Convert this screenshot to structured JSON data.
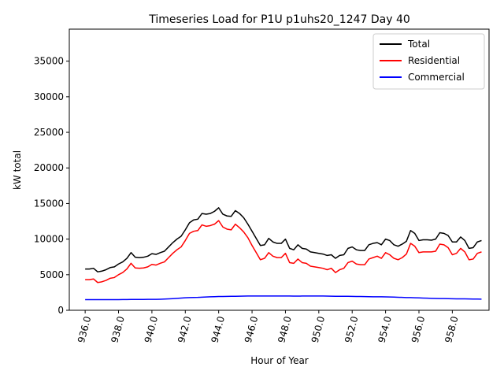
{
  "chart_data": {
    "type": "line",
    "title": "Timeseries Load for P1U p1uhs20_1247  Day 40",
    "xlabel": "Hour of Year",
    "ylabel": "kW total",
    "xlim": [
      935.05,
      960.2
    ],
    "ylim": [
      0,
      39500
    ],
    "x_ticks": [
      "936.0",
      "938.0",
      "940.0",
      "942.0",
      "944.0",
      "946.0",
      "948.0",
      "950.0",
      "952.0",
      "954.0",
      "956.0",
      "958.0"
    ],
    "x_tick_values": [
      936,
      938,
      940,
      942,
      944,
      946,
      948,
      950,
      952,
      954,
      956,
      958
    ],
    "y_ticks": [
      "0",
      "5000",
      "10000",
      "15000",
      "20000",
      "25000",
      "30000",
      "35000"
    ],
    "y_tick_values": [
      0,
      5000,
      10000,
      15000,
      20000,
      25000,
      30000,
      35000
    ],
    "legend_position": "top-right",
    "x_start": 936.0,
    "x_step": 0.25,
    "series": [
      {
        "name": "Total",
        "color": "#000000",
        "values": [
          5800,
          5800,
          5900,
          5400,
          5500,
          5700,
          6000,
          6100,
          6500,
          6800,
          7300,
          8100,
          7450,
          7400,
          7450,
          7600,
          7950,
          7850,
          8100,
          8300,
          8900,
          9500,
          10000,
          10400,
          11300,
          12300,
          12700,
          12800,
          13600,
          13500,
          13600,
          13900,
          14400,
          13500,
          13250,
          13200,
          14000,
          13600,
          13000,
          12100,
          11100,
          10100,
          9100,
          9200,
          10100,
          9600,
          9400,
          9400,
          10000,
          8700,
          8500,
          9200,
          8700,
          8600,
          8200,
          8100,
          8000,
          7900,
          7700,
          7800,
          7300,
          7700,
          7800,
          8700,
          8900,
          8500,
          8400,
          8400,
          9200,
          9400,
          9500,
          9200,
          10000,
          9800,
          9200,
          9000,
          9300,
          9700,
          11200,
          10800,
          9800,
          9900,
          9900,
          9850,
          10000,
          10900,
          10800,
          10500,
          9600,
          9600,
          10300,
          9800,
          8700,
          8800,
          9600,
          9800
        ]
      },
      {
        "name": "Residential",
        "color": "#ff0000",
        "values": [
          4300,
          4300,
          4400,
          3900,
          4000,
          4200,
          4500,
          4600,
          5000,
          5300,
          5800,
          6600,
          5950,
          5900,
          5950,
          6100,
          6450,
          6350,
          6600,
          6800,
          7400,
          8000,
          8500,
          8900,
          9800,
          10800,
          11100,
          11200,
          12000,
          11800,
          11900,
          12100,
          12600,
          11700,
          11400,
          11300,
          12100,
          11600,
          11000,
          10200,
          9100,
          8100,
          7100,
          7300,
          8100,
          7600,
          7400,
          7400,
          8000,
          6700,
          6600,
          7200,
          6700,
          6600,
          6200,
          6100,
          6000,
          5900,
          5700,
          5900,
          5300,
          5700,
          5900,
          6700,
          6900,
          6500,
          6400,
          6400,
          7200,
          7400,
          7600,
          7300,
          8100,
          7800,
          7300,
          7100,
          7400,
          7900,
          9400,
          9000,
          8100,
          8200,
          8200,
          8200,
          8300,
          9300,
          9200,
          8800,
          7800,
          8000,
          8700,
          8200,
          7100,
          7200,
          8000,
          8200
        ]
      },
      {
        "name": "Commercial",
        "color": "#0000ff",
        "values": [
          1500,
          1500,
          1500,
          1500,
          1500,
          1500,
          1500,
          1500,
          1500,
          1510,
          1510,
          1520,
          1520,
          1520,
          1520,
          1530,
          1530,
          1540,
          1550,
          1570,
          1600,
          1630,
          1670,
          1710,
          1750,
          1780,
          1800,
          1810,
          1840,
          1870,
          1890,
          1910,
          1930,
          1940,
          1950,
          1960,
          1970,
          1980,
          1990,
          2000,
          2000,
          2010,
          2010,
          2010,
          2010,
          2010,
          2010,
          2010,
          2000,
          2000,
          1990,
          1990,
          2000,
          2000,
          2010,
          2010,
          2010,
          2000,
          1990,
          1980,
          1970,
          1970,
          1970,
          1960,
          1950,
          1940,
          1930,
          1920,
          1910,
          1900,
          1900,
          1890,
          1880,
          1870,
          1850,
          1830,
          1810,
          1790,
          1780,
          1760,
          1740,
          1720,
          1700,
          1680,
          1660,
          1650,
          1640,
          1630,
          1620,
          1610,
          1600,
          1600,
          1590,
          1580,
          1570,
          1560
        ]
      }
    ]
  }
}
